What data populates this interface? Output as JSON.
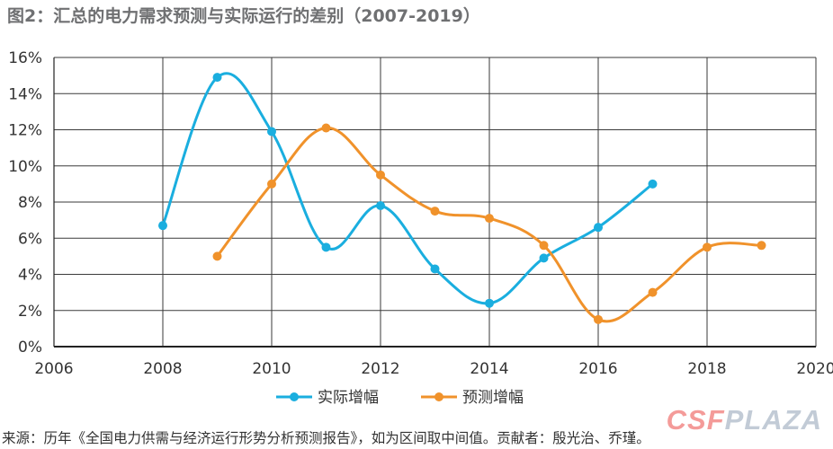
{
  "title": "图2：汇总的电力需求预测与实际运行的差别（2007-2019）",
  "source": "来源：历年《全国电力供需与经济运行形势分析预测报告》，如为区间取中间值。贡献者：殷光治、乔瑾。",
  "watermark": {
    "part1": "CSF",
    "part2": "PLAZA"
  },
  "chart_data": {
    "type": "line",
    "smooth": true,
    "xlim": [
      2006,
      2020
    ],
    "ylim": [
      0,
      16
    ],
    "x_ticks": [
      2006,
      2008,
      2010,
      2012,
      2014,
      2016,
      2018,
      2020
    ],
    "y_ticks": [
      0,
      2,
      4,
      6,
      8,
      10,
      12,
      14,
      16
    ],
    "y_tick_labels": [
      "0%",
      "2%",
      "4%",
      "6%",
      "8%",
      "10%",
      "12%",
      "14%",
      "16%"
    ],
    "grid": true,
    "legend_position": "bottom-center",
    "series": [
      {
        "name": "实际增幅",
        "color": "#1aaedf",
        "x": [
          2008,
          2009,
          2010,
          2011,
          2012,
          2013,
          2014,
          2015,
          2016,
          2017
        ],
        "values": [
          6.7,
          14.9,
          11.9,
          5.5,
          7.8,
          4.3,
          2.4,
          4.9,
          6.6,
          9.0
        ]
      },
      {
        "name": "预测增幅",
        "color": "#f0922b",
        "x": [
          2009,
          2010,
          2011,
          2012,
          2013,
          2014,
          2015,
          2016,
          2017,
          2018,
          2019
        ],
        "values": [
          5.0,
          9.0,
          12.1,
          9.5,
          7.5,
          7.1,
          5.6,
          1.5,
          3.0,
          5.5,
          5.6
        ]
      }
    ]
  }
}
